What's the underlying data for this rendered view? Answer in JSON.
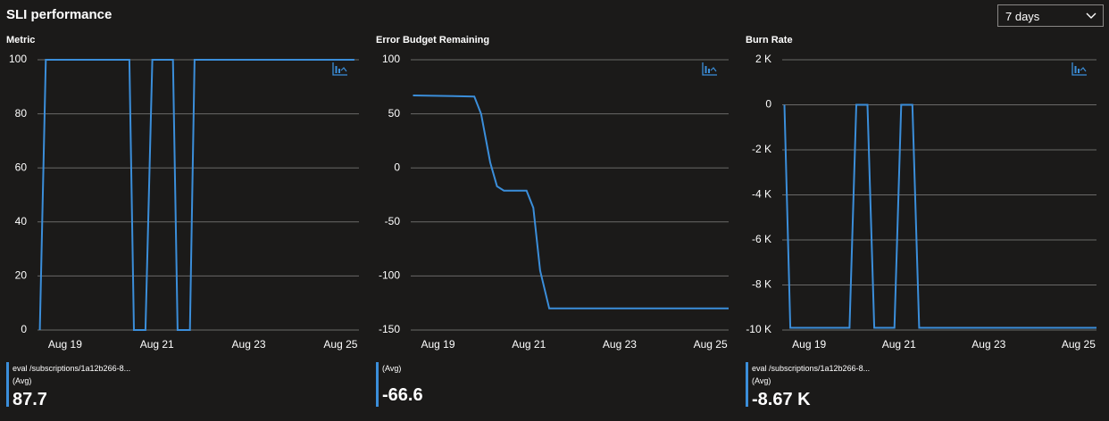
{
  "header": {
    "title": "SLI performance"
  },
  "time_range": {
    "selected": "7 days",
    "icon": "chevron-down-icon"
  },
  "accent_color": "#3b8eda",
  "chart_data": [
    {
      "type": "line",
      "title": "Metric",
      "x_tick_labels": [
        "Aug 19",
        "Aug 21",
        "Aug 23",
        "Aug 25"
      ],
      "x_ticks_day": [
        19,
        21,
        23,
        25
      ],
      "xlim_day": [
        18.4,
        25.4
      ],
      "y_tick_labels": [
        "100",
        "80",
        "60",
        "40",
        "20",
        "0"
      ],
      "y_ticks": [
        100,
        80,
        60,
        40,
        20,
        0
      ],
      "ylim": [
        0,
        100
      ],
      "series": [
        {
          "x_day": [
            18.45,
            18.58,
            20.4,
            20.5,
            20.75,
            20.9,
            21.35,
            21.45,
            21.72,
            21.82,
            25.3
          ],
          "values": [
            0,
            100,
            100,
            0,
            0,
            100,
            100,
            0,
            0,
            100,
            100
          ]
        }
      ],
      "legend": {
        "name": "eval /subscriptions/1a12b266-8...",
        "aggregation": "(Avg)",
        "value": "87.7"
      }
    },
    {
      "type": "line",
      "title": "Error Budget Remaining",
      "x_tick_labels": [
        "Aug 19",
        "Aug 21",
        "Aug 23",
        "Aug 25"
      ],
      "x_ticks_day": [
        19,
        21,
        23,
        25
      ],
      "xlim_day": [
        18.4,
        25.4
      ],
      "y_tick_labels": [
        "100",
        "50",
        "0",
        "-50",
        "-100",
        "-150"
      ],
      "y_ticks": [
        100,
        50,
        0,
        -50,
        -100,
        -150
      ],
      "ylim": [
        -150,
        100
      ],
      "series": [
        {
          "x_day": [
            18.45,
            19.8,
            19.95,
            20.15,
            20.3,
            20.45,
            20.8,
            20.95,
            21.1,
            21.25,
            21.45,
            25.4
          ],
          "values": [
            67,
            66,
            50,
            5,
            -17,
            -21,
            -21,
            -21,
            -37,
            -95,
            -130,
            -130
          ]
        }
      ],
      "legend": {
        "name": "",
        "aggregation": "(Avg)",
        "value": "-66.6"
      }
    },
    {
      "type": "line",
      "title": "Burn Rate",
      "x_tick_labels": [
        "Aug 19",
        "Aug 21",
        "Aug 23",
        "Aug 25"
      ],
      "x_ticks_day": [
        19,
        21,
        23,
        25
      ],
      "xlim_day": [
        18.4,
        25.4
      ],
      "y_tick_labels": [
        "2 K",
        "0",
        "-2 K",
        "-4 K",
        "-6 K",
        "-8 K",
        "-10 K"
      ],
      "y_ticks": [
        2000,
        0,
        -2000,
        -4000,
        -6000,
        -8000,
        -10000
      ],
      "ylim": [
        -10000,
        2000
      ],
      "series": [
        {
          "x_day": [
            18.45,
            18.58,
            19.9,
            20.05,
            20.3,
            20.45,
            20.9,
            21.05,
            21.3,
            21.45,
            25.4
          ],
          "values": [
            0,
            -9900,
            -9900,
            0,
            0,
            -9900,
            -9900,
            0,
            0,
            -9900,
            -9900
          ]
        }
      ],
      "legend": {
        "name": "eval /subscriptions/1a12b266-8...",
        "aggregation": "(Avg)",
        "value": "-8.67 K"
      }
    }
  ]
}
